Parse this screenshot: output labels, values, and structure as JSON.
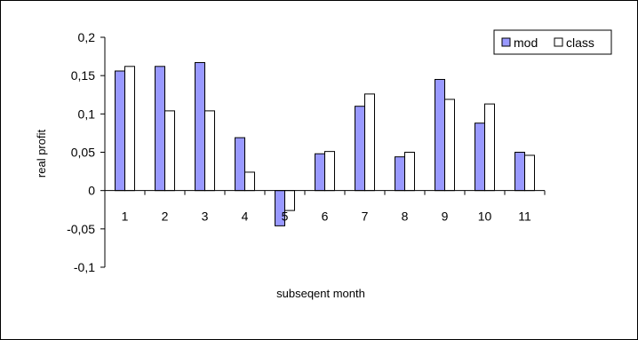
{
  "chart_data": {
    "type": "bar",
    "title": "",
    "xlabel": "subseqent month",
    "ylabel": "real profit",
    "categories": [
      "1",
      "2",
      "3",
      "4",
      "5",
      "6",
      "7",
      "8",
      "9",
      "10",
      "11"
    ],
    "series": [
      {
        "name": "mod",
        "color": "#9999ff",
        "values": [
          0.156,
          0.162,
          0.167,
          0.069,
          -0.046,
          0.048,
          0.11,
          0.044,
          0.145,
          0.088,
          0.05
        ]
      },
      {
        "name": "class",
        "color": "#ffffff",
        "values": [
          0.162,
          0.104,
          0.104,
          0.024,
          -0.026,
          0.051,
          0.126,
          0.05,
          0.119,
          0.113,
          0.046
        ]
      }
    ],
    "ylim": [
      -0.1,
      0.2
    ],
    "yticks": [
      0.2,
      0.15,
      0.1,
      0.05,
      0,
      -0.05,
      -0.1
    ],
    "ytick_labels": [
      "0,2",
      "0,15",
      "0,1",
      "0,05",
      "0",
      "-0,05",
      "-0,1"
    ],
    "grid": false,
    "legend_position": "top-right"
  }
}
